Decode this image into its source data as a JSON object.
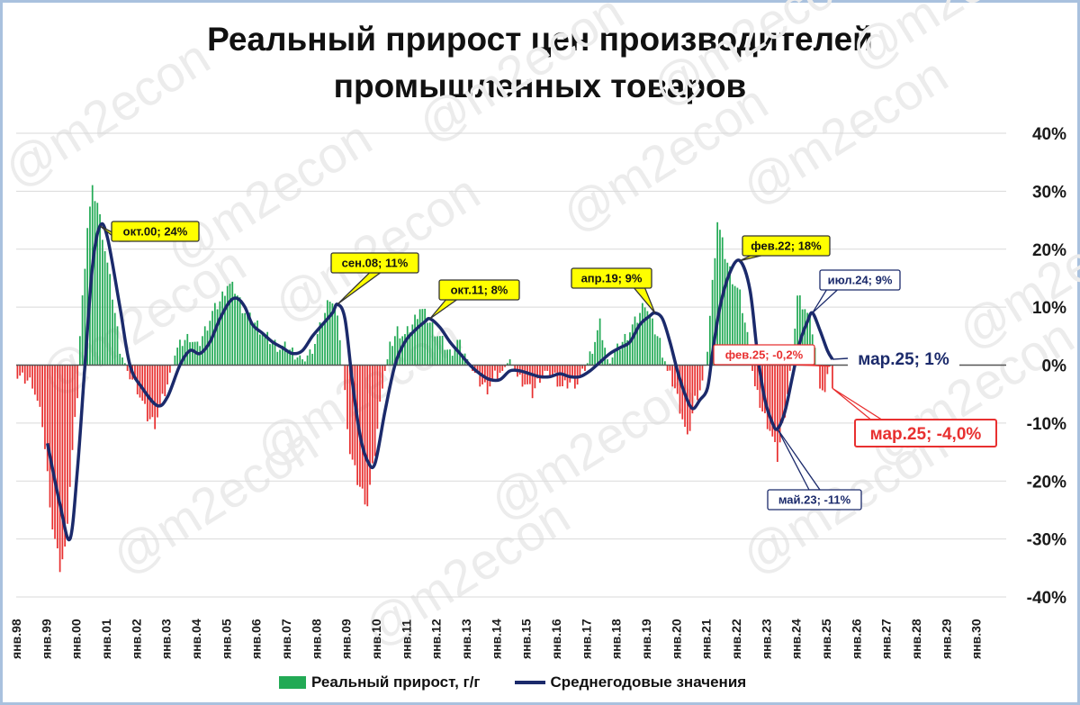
{
  "title_lines": [
    "Реальный прирост цен производителей",
    "промышленных товаров"
  ],
  "watermark": "@m2econ",
  "colors": {
    "positive": "#22aa55",
    "negative": "#e83030",
    "line": "#1b2a6b",
    "callout_fill": "#ffff00",
    "grid": "#d9d9d9"
  },
  "legend": {
    "bars": "Реальный прирост, г/г",
    "line": "Среднегодовые значения"
  },
  "chart_data": {
    "type": "bar+line",
    "x_start": "1998-01",
    "x_end": "2030-12",
    "ylim": [
      -40,
      40
    ],
    "y_ticks": [
      "40%",
      "30%",
      "20%",
      "10%",
      "0%",
      "-10%",
      "-20%",
      "-30%",
      "-40%"
    ],
    "x_ticks": [
      "янв.98",
      "янв.99",
      "янв.00",
      "янв.01",
      "янв.02",
      "янв.03",
      "янв.04",
      "янв.05",
      "янв.06",
      "янв.07",
      "янв.08",
      "янв.09",
      "янв.10",
      "янв.11",
      "янв.12",
      "янв.13",
      "янв.14",
      "янв.15",
      "янв.16",
      "янв.17",
      "янв.18",
      "янв.19",
      "янв.20",
      "янв.21",
      "янв.22",
      "янв.23",
      "янв.24",
      "янв.25",
      "янв.26",
      "янв.27",
      "янв.28",
      "янв.29",
      "янв.30"
    ],
    "series": [
      {
        "name": "Реальный прирост, г/г",
        "kind": "bar",
        "anchors": [
          [
            "1998-01",
            -2
          ],
          [
            "1998-07",
            -3
          ],
          [
            "1998-11",
            -10
          ],
          [
            "1999-03",
            -28
          ],
          [
            "1999-06",
            -35
          ],
          [
            "1999-08",
            -32
          ],
          [
            "1999-11",
            -15
          ],
          [
            "2000-01",
            -5
          ],
          [
            "2000-02",
            5
          ],
          [
            "2000-05",
            24
          ],
          [
            "2000-07",
            30
          ],
          [
            "2000-09",
            28
          ],
          [
            "2000-12",
            20
          ],
          [
            "2001-03",
            12
          ],
          [
            "2001-06",
            3
          ],
          [
            "2001-09",
            -1
          ],
          [
            "2002-01",
            -4
          ],
          [
            "2002-05",
            -9
          ],
          [
            "2002-08",
            -10
          ],
          [
            "2002-11",
            -6
          ],
          [
            "2003-02",
            -2
          ],
          [
            "2003-04",
            2
          ],
          [
            "2003-07",
            4
          ],
          [
            "2003-10",
            5
          ],
          [
            "2004-01",
            3
          ],
          [
            "2004-04",
            6
          ],
          [
            "2004-07",
            9
          ],
          [
            "2004-10",
            11
          ],
          [
            "2005-01",
            14
          ],
          [
            "2005-04",
            13
          ],
          [
            "2005-07",
            10
          ],
          [
            "2005-10",
            8
          ],
          [
            "2006-01",
            7
          ],
          [
            "2006-04",
            5
          ],
          [
            "2006-07",
            4
          ],
          [
            "2006-10",
            3
          ],
          [
            "2007-01",
            3
          ],
          [
            "2007-04",
            2
          ],
          [
            "2007-07",
            1
          ],
          [
            "2007-10",
            2
          ],
          [
            "2008-01",
            5
          ],
          [
            "2008-04",
            9
          ],
          [
            "2008-06",
            12
          ],
          [
            "2008-08",
            10
          ],
          [
            "2008-10",
            5
          ],
          [
            "2008-12",
            -5
          ],
          [
            "2009-02",
            -15
          ],
          [
            "2009-05",
            -20
          ],
          [
            "2009-09",
            -24
          ],
          [
            "2009-12",
            -15
          ],
          [
            "2010-03",
            -3
          ],
          [
            "2010-06",
            3
          ],
          [
            "2010-09",
            6
          ],
          [
            "2010-12",
            5
          ],
          [
            "2011-03",
            7
          ],
          [
            "2011-06",
            10
          ],
          [
            "2011-09",
            8
          ],
          [
            "2011-12",
            6
          ],
          [
            "2012-03",
            4
          ],
          [
            "2012-06",
            2
          ],
          [
            "2012-09",
            4
          ],
          [
            "2012-12",
            2
          ],
          [
            "2013-03",
            -1
          ],
          [
            "2013-06",
            -3
          ],
          [
            "2013-09",
            -4
          ],
          [
            "2013-12",
            -2
          ],
          [
            "2014-03",
            -1
          ],
          [
            "2014-06",
            1
          ],
          [
            "2014-09",
            -2
          ],
          [
            "2014-12",
            -3
          ],
          [
            "2015-03",
            -5
          ],
          [
            "2015-06",
            -2
          ],
          [
            "2015-09",
            -1
          ],
          [
            "2015-12",
            -2
          ],
          [
            "2016-03",
            -4
          ],
          [
            "2016-06",
            -3
          ],
          [
            "2016-09",
            -3
          ],
          [
            "2016-12",
            -1
          ],
          [
            "2017-03",
            3
          ],
          [
            "2017-06",
            7
          ],
          [
            "2017-09",
            1
          ],
          [
            "2017-12",
            2
          ],
          [
            "2018-03",
            4
          ],
          [
            "2018-06",
            6
          ],
          [
            "2018-09",
            8
          ],
          [
            "2018-12",
            11
          ],
          [
            "2019-03",
            7
          ],
          [
            "2019-06",
            4
          ],
          [
            "2019-09",
            -1
          ],
          [
            "2019-12",
            -4
          ],
          [
            "2020-03",
            -9
          ],
          [
            "2020-05",
            -13
          ],
          [
            "2020-08",
            -6
          ],
          [
            "2020-11",
            -3
          ],
          [
            "2021-01",
            3
          ],
          [
            "2021-03",
            14
          ],
          [
            "2021-05",
            25
          ],
          [
            "2021-08",
            19
          ],
          [
            "2021-11",
            15
          ],
          [
            "2022-02",
            12
          ],
          [
            "2022-05",
            5
          ],
          [
            "2022-08",
            -4
          ],
          [
            "2022-11",
            -8
          ],
          [
            "2023-02",
            -11
          ],
          [
            "2023-05",
            -16
          ],
          [
            "2023-08",
            -8
          ],
          [
            "2023-11",
            2
          ],
          [
            "2024-01",
            12
          ],
          [
            "2024-04",
            10
          ],
          [
            "2024-07",
            6
          ],
          [
            "2024-10",
            -3
          ],
          [
            "2024-12",
            -5
          ],
          [
            "2025-02",
            -0.2
          ],
          [
            "2025-03",
            -4
          ]
        ]
      },
      {
        "name": "Среднегодовые значения",
        "kind": "line",
        "points": [
          [
            "1999-01",
            -13.5
          ],
          [
            "1999-06",
            -24
          ],
          [
            "1999-10",
            -30
          ],
          [
            "2000-01",
            -18
          ],
          [
            "2000-04",
            0
          ],
          [
            "2000-07",
            17
          ],
          [
            "2000-10",
            24
          ],
          [
            "2001-01",
            22
          ],
          [
            "2001-06",
            10
          ],
          [
            "2001-10",
            0
          ],
          [
            "2002-03",
            -4
          ],
          [
            "2002-09",
            -7
          ],
          [
            "2003-01",
            -5.5
          ],
          [
            "2003-06",
            0
          ],
          [
            "2003-10",
            2.5
          ],
          [
            "2004-02",
            2
          ],
          [
            "2004-06",
            4
          ],
          [
            "2004-10",
            8
          ],
          [
            "2005-02",
            11
          ],
          [
            "2005-05",
            11.5
          ],
          [
            "2005-08",
            10
          ],
          [
            "2005-11",
            7
          ],
          [
            "2006-03",
            5.5
          ],
          [
            "2006-07",
            4
          ],
          [
            "2006-11",
            3
          ],
          [
            "2007-03",
            2
          ],
          [
            "2007-07",
            2.5
          ],
          [
            "2007-11",
            5
          ],
          [
            "2008-03",
            7
          ],
          [
            "2008-07",
            9
          ],
          [
            "2008-09",
            10.5
          ],
          [
            "2008-12",
            8
          ],
          [
            "2009-03",
            -3
          ],
          [
            "2009-06",
            -12
          ],
          [
            "2009-09",
            -16.5
          ],
          [
            "2009-12",
            -17
          ],
          [
            "2010-04",
            -8
          ],
          [
            "2010-08",
            0
          ],
          [
            "2010-12",
            4
          ],
          [
            "2011-04",
            6
          ],
          [
            "2011-08",
            7.5
          ],
          [
            "2011-10",
            8
          ],
          [
            "2012-02",
            6.5
          ],
          [
            "2012-06",
            4
          ],
          [
            "2012-10",
            2
          ],
          [
            "2013-02",
            0
          ],
          [
            "2013-06",
            -1.5
          ],
          [
            "2013-10",
            -2.5
          ],
          [
            "2014-02",
            -2.5
          ],
          [
            "2014-06",
            -1
          ],
          [
            "2014-10",
            -1
          ],
          [
            "2015-02",
            -1.5
          ],
          [
            "2015-06",
            -2
          ],
          [
            "2015-10",
            -2
          ],
          [
            "2016-02",
            -1.5
          ],
          [
            "2016-06",
            -2
          ],
          [
            "2016-10",
            -2
          ],
          [
            "2017-02",
            -1
          ],
          [
            "2017-06",
            0.5
          ],
          [
            "2017-10",
            2
          ],
          [
            "2018-02",
            3
          ],
          [
            "2018-06",
            4
          ],
          [
            "2018-10",
            7
          ],
          [
            "2019-02",
            8.5
          ],
          [
            "2019-04",
            9
          ],
          [
            "2019-07",
            8
          ],
          [
            "2019-10",
            4
          ],
          [
            "2020-01",
            -1
          ],
          [
            "2020-04",
            -5
          ],
          [
            "2020-07",
            -7.5
          ],
          [
            "2020-10",
            -6
          ],
          [
            "2021-01",
            -4
          ],
          [
            "2021-03",
            2
          ],
          [
            "2021-06",
            10
          ],
          [
            "2021-10",
            16
          ],
          [
            "2022-02",
            18
          ],
          [
            "2022-06",
            13
          ],
          [
            "2022-09",
            2
          ],
          [
            "2022-12",
            -6
          ],
          [
            "2023-03",
            -10
          ],
          [
            "2023-05",
            -11
          ],
          [
            "2023-08",
            -8
          ],
          [
            "2023-11",
            -2
          ],
          [
            "2024-02",
            4
          ],
          [
            "2024-05",
            7.5
          ],
          [
            "2024-07",
            9
          ],
          [
            "2024-10",
            6
          ],
          [
            "2025-01",
            2.5
          ],
          [
            "2025-03",
            1
          ]
        ]
      }
    ],
    "annotations": [
      {
        "text": "окт.00; 24%",
        "date": "2000-10",
        "value": 24,
        "style": "callout-yellow"
      },
      {
        "text": "сен.08; 11%",
        "date": "2008-09",
        "value": 10.5,
        "style": "callout-yellow"
      },
      {
        "text": "окт.11; 8%",
        "date": "2011-10",
        "value": 8,
        "style": "callout-yellow"
      },
      {
        "text": "апр.19; 9%",
        "date": "2019-04",
        "value": 9,
        "style": "callout-yellow"
      },
      {
        "text": "фев.22; 18%",
        "date": "2022-02",
        "value": 18,
        "style": "callout-yellow"
      },
      {
        "text": "июл.24; 9%",
        "date": "2024-07",
        "value": 9,
        "style": "callout-navy"
      },
      {
        "text": "май.23; -11%",
        "date": "2023-05",
        "value": -11,
        "style": "callout-navy"
      },
      {
        "text": "фев.25; -0,2%",
        "date": "2025-02",
        "value": -0.2,
        "style": "callout-red"
      },
      {
        "text": "мар.25; 1%",
        "date": "2025-03",
        "value": 1,
        "style": "label-navy"
      },
      {
        "text": "мар.25; -4,0%",
        "date": "2025-03",
        "value": -4,
        "style": "label-red"
      }
    ],
    "grid": true,
    "legend_position": "bottom"
  }
}
